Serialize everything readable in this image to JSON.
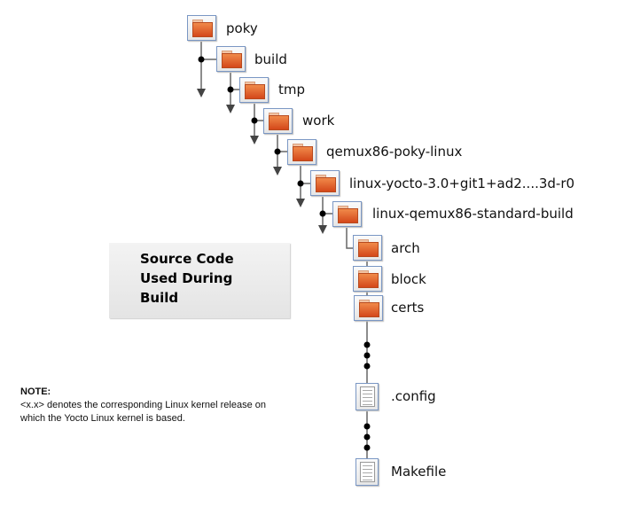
{
  "tree": {
    "folders": [
      "poky",
      "build",
      "tmp",
      "work",
      "qemux86-poky-linux",
      "linux-yocto-3.0+git1+ad2....3d-r0",
      "linux-qemux86-standard-build",
      "arch",
      "block",
      "certs"
    ],
    "files": [
      ".config",
      "Makefile"
    ]
  },
  "callout": {
    "line1": "Source Code",
    "line2": "Used During",
    "line3": "Build"
  },
  "note": {
    "title": "NOTE:",
    "line1": "<x.x> denotes the corresponding Linux kernel release on",
    "line2": "which the Yocto Linux kernel is based."
  },
  "colors": {
    "folder": "#e0602a",
    "border": "#7a97c4",
    "line": "#555555"
  }
}
